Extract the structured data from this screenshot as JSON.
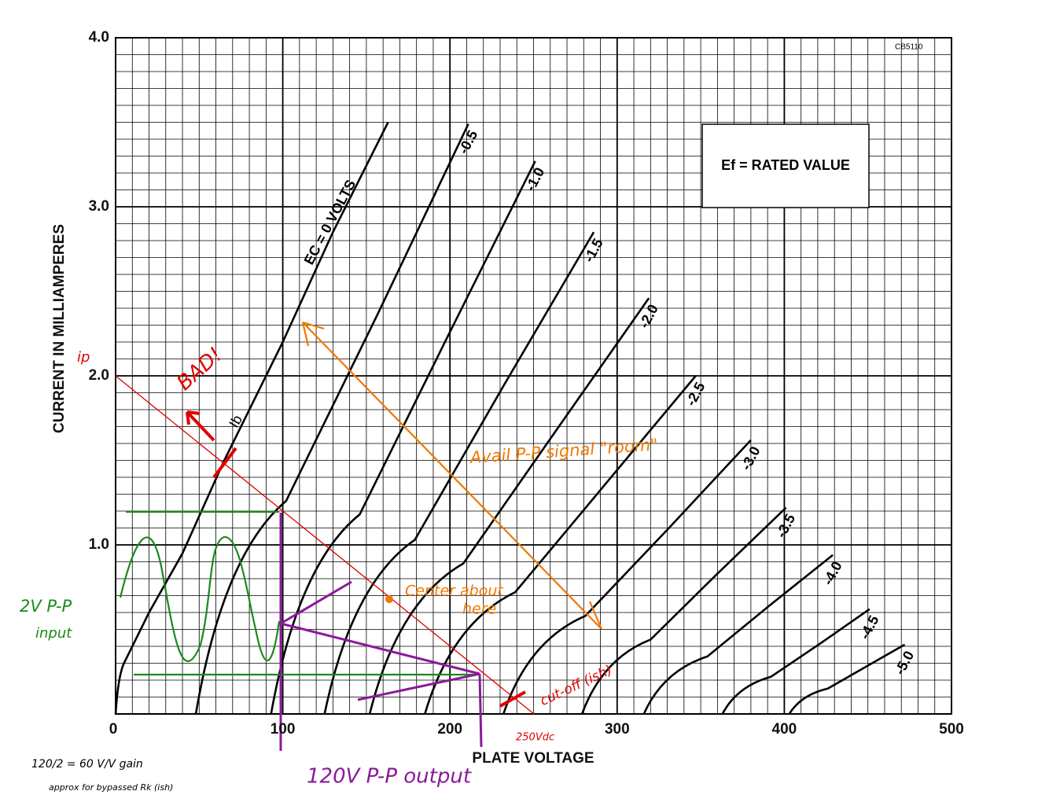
{
  "chart_data": {
    "type": "line",
    "x_label": "PLATE VOLTAGE",
    "y_label": "CURRENT IN MILLIAMPERES",
    "xlim": [
      0,
      500
    ],
    "ylim": [
      0,
      4
    ],
    "xticks": [
      0,
      100,
      200,
      300,
      400,
      500
    ],
    "yticks": [
      {
        "value": 1,
        "label": "1.0"
      },
      {
        "value": 2,
        "label": "2.0"
      },
      {
        "value": 3,
        "label": "3.0"
      },
      {
        "value": 4,
        "label": "4.0"
      }
    ],
    "grid": true,
    "color": "#000000",
    "series": [
      {
        "name": "EC = 0 VOLTS",
        "x": [
          0,
          5,
          20,
          40,
          65,
          100,
          130,
          163
        ],
        "values": [
          0,
          0.3,
          0.6,
          0.95,
          1.5,
          2.2,
          2.85,
          3.5
        ]
      },
      {
        "name": "-0.5",
        "x": [
          48,
          102,
          157,
          211
        ],
        "values": [
          0,
          1.26,
          2.37,
          3.49
        ]
      },
      {
        "name": "-1.0",
        "x": [
          93,
          146,
          198,
          251
        ],
        "values": [
          0,
          1.18,
          2.22,
          3.27
        ]
      },
      {
        "name": "-1.5",
        "x": [
          125,
          179,
          232,
          286
        ],
        "values": [
          0,
          1.03,
          1.94,
          2.85
        ]
      },
      {
        "name": "-2.0",
        "x": [
          152,
          208,
          263,
          319
        ],
        "values": [
          0,
          0.89,
          1.67,
          2.46
        ]
      },
      {
        "name": "-2.5",
        "x": [
          185,
          239,
          293,
          347
        ],
        "values": [
          0,
          0.72,
          1.36,
          2.0
        ]
      },
      {
        "name": "-3.0",
        "x": [
          232,
          281,
          331,
          380
        ],
        "values": [
          0,
          0.58,
          1.1,
          1.62
        ]
      },
      {
        "name": "-3.5",
        "x": [
          279,
          320,
          360,
          401
        ],
        "values": [
          0,
          0.44,
          0.83,
          1.22
        ]
      },
      {
        "name": "-4.0",
        "x": [
          316,
          354,
          391,
          429
        ],
        "values": [
          0,
          0.34,
          0.64,
          0.94
        ]
      },
      {
        "name": "-4.5",
        "x": [
          363,
          392,
          422,
          451
        ],
        "values": [
          0,
          0.22,
          0.42,
          0.62
        ]
      },
      {
        "name": "-5.0",
        "x": [
          403,
          426,
          449,
          472
        ],
        "values": [
          0,
          0.15,
          0.28,
          0.41
        ]
      }
    ],
    "annotations": [
      "ip",
      "BAD!",
      "Ib",
      "Avail P-P signal \"room\"",
      "Center about",
      "here",
      "cut-off (ish)",
      "250Vdc",
      "2V P-P",
      "input",
      "120V P-P output",
      "120/2 = 60 V/V gain",
      "approx for bypassed Rk (ish)",
      "CB5110",
      "Ef = RATED VALUE"
    ]
  }
}
